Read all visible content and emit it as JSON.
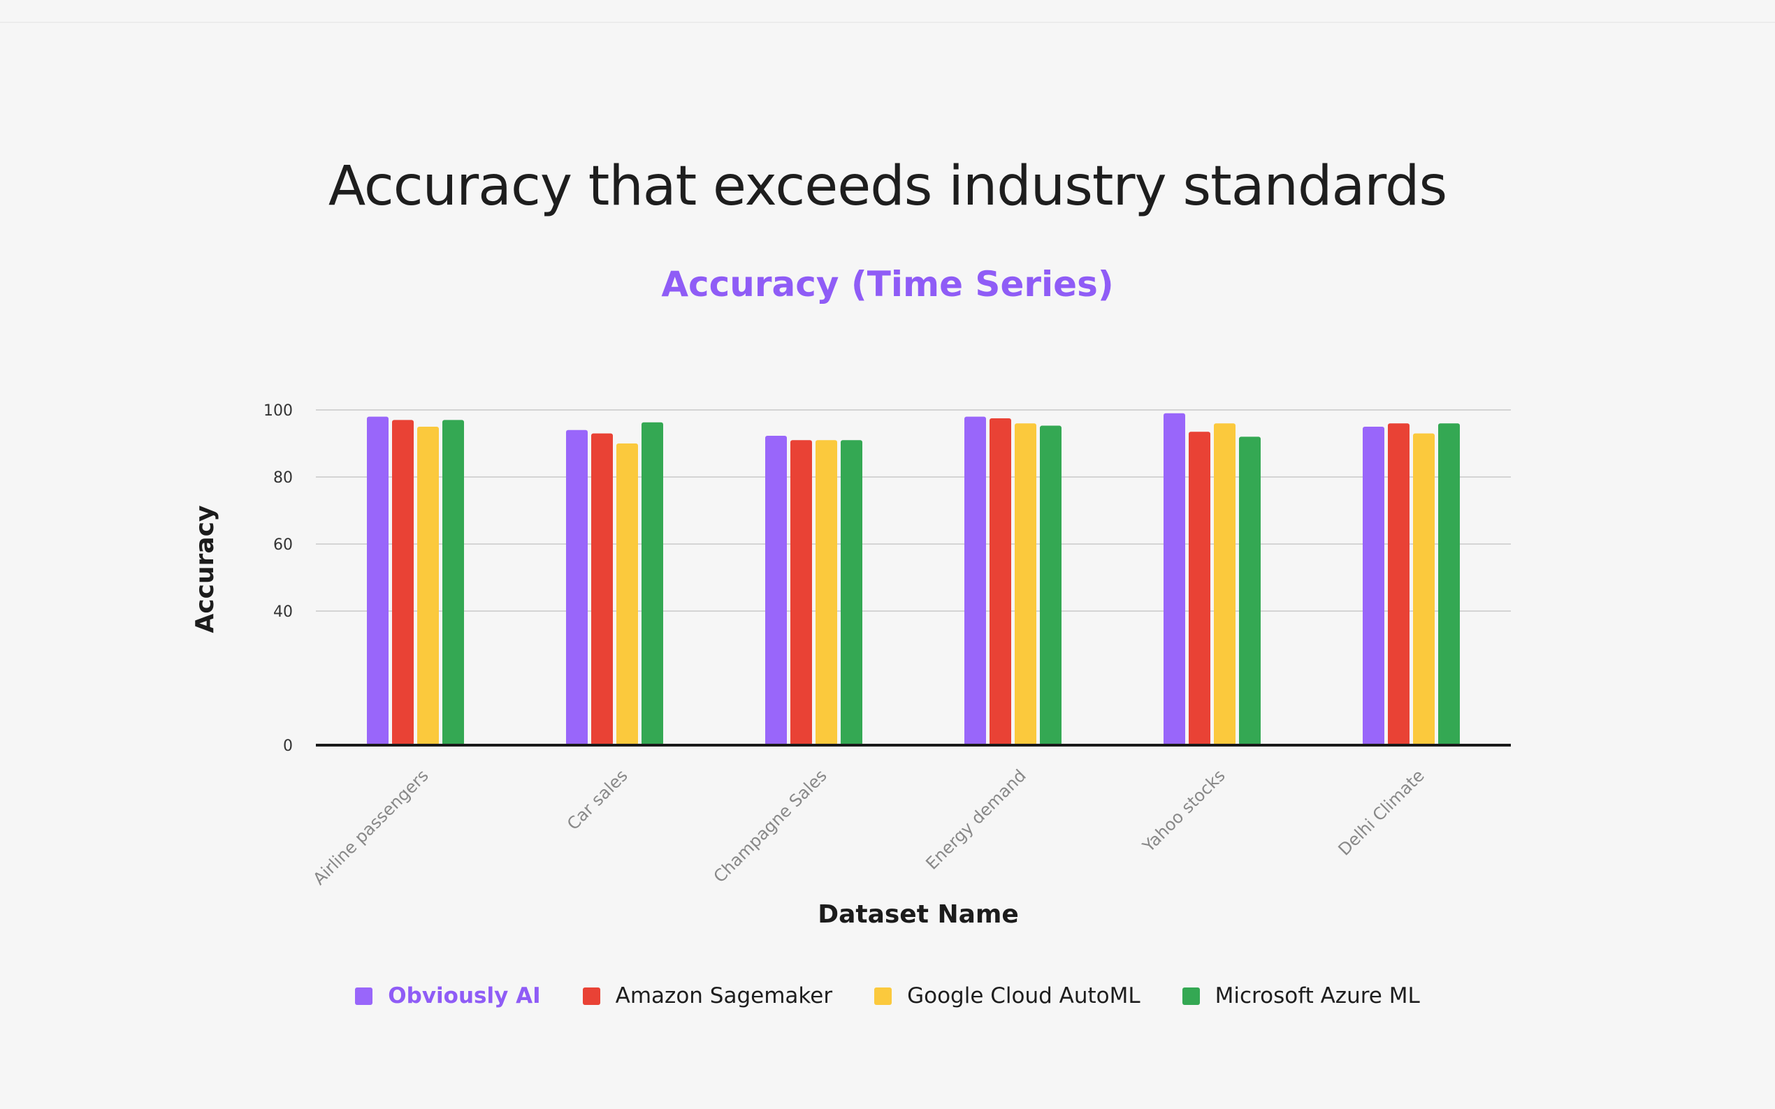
{
  "page": {
    "title": "Accuracy that exceeds industry standards"
  },
  "chart_data": {
    "type": "bar",
    "title": "Accuracy (Time Series)",
    "xlabel": "Dataset Name",
    "ylabel": "Accuracy",
    "ylim": [
      0,
      100
    ],
    "yticks": [
      0,
      40,
      60,
      80,
      100
    ],
    "grid": true,
    "legend_position": "bottom",
    "categories": [
      "Airline passengers",
      "Car sales",
      "Champagne Sales",
      "Energy demand",
      "Yahoo stocks",
      "Delhi Climate"
    ],
    "series": [
      {
        "name": "Obviously AI",
        "color": "#9966fa",
        "highlight": true,
        "values": [
          98,
          94,
          92.3,
          98,
          99,
          95
        ]
      },
      {
        "name": "Amazon Sagemaker",
        "color": "#e94235",
        "highlight": false,
        "values": [
          97,
          93,
          91,
          97.5,
          93.5,
          96
        ]
      },
      {
        "name": "Google Cloud AutoML",
        "color": "#fbc93d",
        "highlight": false,
        "values": [
          95,
          90,
          91,
          96,
          96,
          93
        ]
      },
      {
        "name": "Microsoft Azure ML",
        "color": "#34a853",
        "highlight": false,
        "values": [
          97,
          96.3,
          91,
          95.3,
          92,
          96
        ]
      }
    ]
  }
}
